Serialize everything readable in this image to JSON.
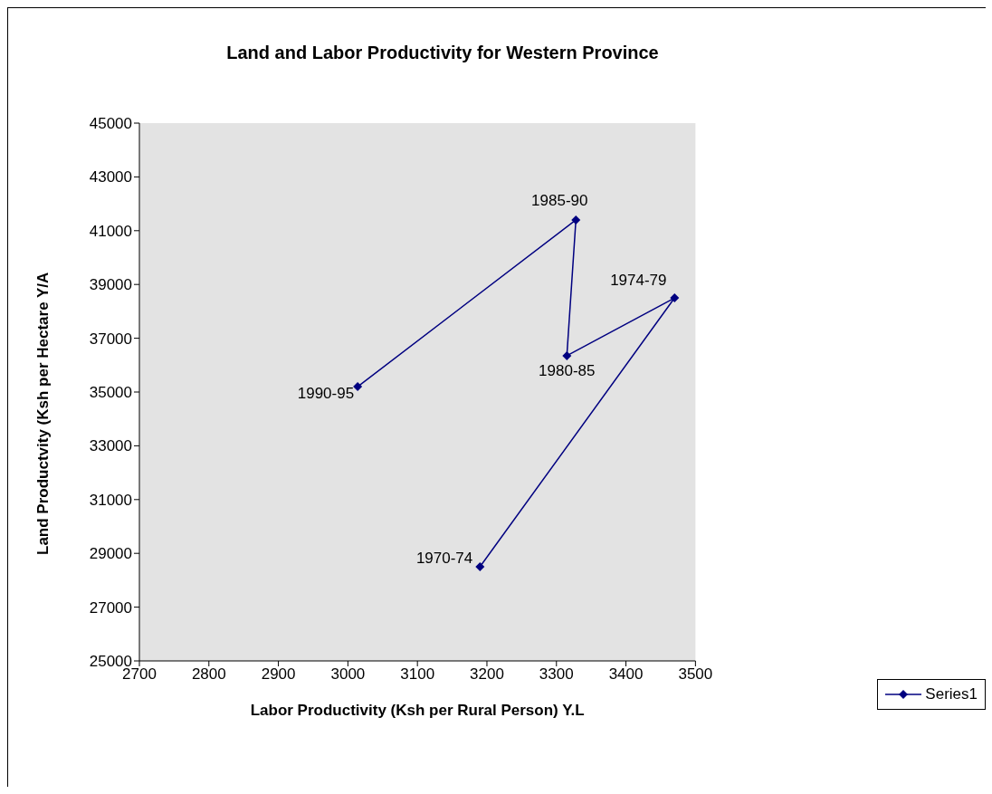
{
  "chart_data": {
    "type": "line",
    "title": "Land and Labor Productivity for Western Province",
    "xlabel": "Labor Productivity (Ksh per Rural Person) Y.L",
    "ylabel": "Land Productvity (Ksh per Hectare Y/A",
    "x": [
      3190,
      3470,
      3315,
      3328,
      3014
    ],
    "series": [
      {
        "name": "Series1",
        "color": "#000080",
        "values": [
          28500,
          38500,
          36350,
          41400,
          35200
        ]
      }
    ],
    "xlim": [
      2700,
      3500
    ],
    "xticks": [
      2700,
      2800,
      2900,
      3000,
      3100,
      3200,
      3300,
      3400,
      3500
    ],
    "ylim": [
      25000,
      45000
    ],
    "yticks": [
      25000,
      27000,
      29000,
      31000,
      33000,
      35000,
      37000,
      39000,
      41000,
      43000,
      45000
    ],
    "annotations": [
      {
        "text": "1970-74",
        "x": 3190,
        "y": 28500
      },
      {
        "text": "1974-79",
        "x": 3470,
        "y": 38500
      },
      {
        "text": "1980-85",
        "x": 3315,
        "y": 36350
      },
      {
        "text": "1985-90",
        "x": 3328,
        "y": 41400
      },
      {
        "text": "1990-95",
        "x": 3014,
        "y": 35200
      }
    ],
    "grid": false,
    "legend": "right",
    "marker": "diamond",
    "line_style": "solid"
  }
}
